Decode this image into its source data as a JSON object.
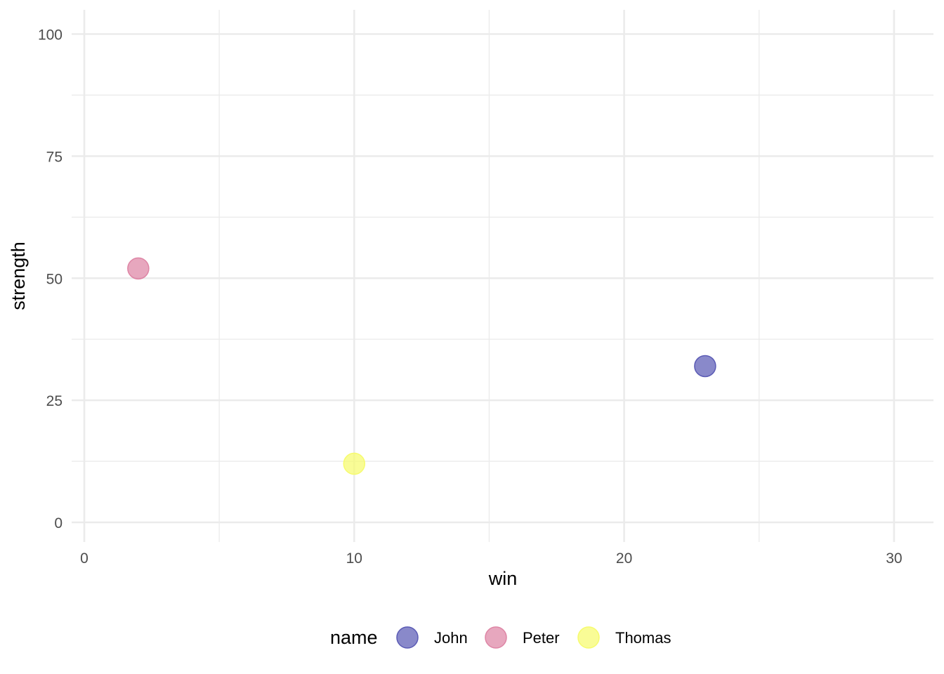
{
  "chart_data": {
    "type": "scatter",
    "title": "",
    "xlabel": "win",
    "ylabel": "strength",
    "xlim": [
      0,
      31.5
    ],
    "ylim": [
      0,
      100
    ],
    "x_ticks": [
      0,
      10,
      20,
      30
    ],
    "y_ticks": [
      0,
      25,
      50,
      75,
      100
    ],
    "x_minor_ticks": [
      5,
      15,
      25
    ],
    "y_minor_ticks": [
      12.5,
      37.5,
      62.5,
      87.5
    ],
    "grid": true,
    "legend": {
      "title": "name",
      "position": "bottom"
    },
    "series": [
      {
        "name": "John",
        "color": "#5B5BB5",
        "points": [
          {
            "x": 23,
            "y": 32
          }
        ]
      },
      {
        "name": "Peter",
        "color": "#DE85A5",
        "points": [
          {
            "x": 2,
            "y": 52
          }
        ]
      },
      {
        "name": "Thomas",
        "color": "#F6FB6E",
        "points": [
          {
            "x": 10,
            "y": 12
          }
        ]
      }
    ]
  }
}
